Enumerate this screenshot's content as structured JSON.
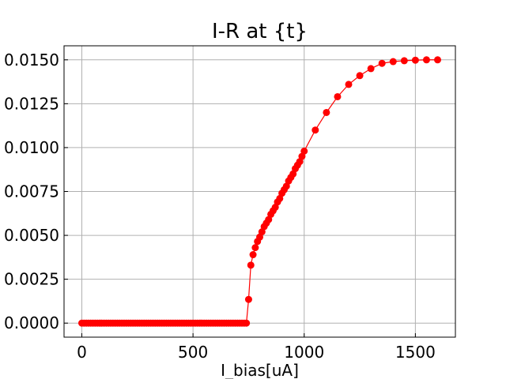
{
  "chart_data": {
    "type": "line",
    "title": "I-R at {t}",
    "xlabel": "I_bias[uA]",
    "ylabel": "",
    "xlim": [
      -80,
      1680
    ],
    "ylim": [
      -0.0008,
      0.0158
    ],
    "xticks": [
      0,
      500,
      1000,
      1500
    ],
    "xtick_labels": [
      "0",
      "500",
      "1000",
      "1500"
    ],
    "yticks": [
      0.0,
      0.0025,
      0.005,
      0.0075,
      0.01,
      0.0125,
      0.015
    ],
    "ytick_labels": [
      "0.0000",
      "0.0025",
      "0.0050",
      "0.0075",
      "0.0100",
      "0.0125",
      "0.0150"
    ],
    "grid": true,
    "colors": {
      "series": "#ff0000",
      "grid": "#b0b0b0",
      "axes": "#000000"
    },
    "series": [
      {
        "marker": "circle",
        "x": [
          0,
          10,
          20,
          30,
          40,
          50,
          60,
          70,
          80,
          90,
          100,
          110,
          120,
          130,
          140,
          150,
          160,
          170,
          180,
          190,
          200,
          210,
          220,
          230,
          240,
          250,
          260,
          270,
          280,
          290,
          300,
          310,
          320,
          330,
          340,
          350,
          360,
          370,
          380,
          390,
          400,
          410,
          420,
          430,
          440,
          450,
          460,
          470,
          480,
          490,
          500,
          510,
          520,
          530,
          540,
          550,
          560,
          570,
          580,
          590,
          600,
          610,
          620,
          630,
          640,
          650,
          660,
          670,
          680,
          690,
          700,
          710,
          720,
          730,
          740,
          750,
          760,
          770,
          780,
          790,
          800,
          810,
          820,
          830,
          840,
          850,
          860,
          870,
          880,
          890,
          900,
          910,
          920,
          930,
          940,
          950,
          960,
          970,
          980,
          990,
          1000,
          1050,
          1100,
          1150,
          1200,
          1250,
          1300,
          1350,
          1400,
          1450,
          1500,
          1550,
          1600
        ],
        "y": [
          0,
          0,
          0,
          0,
          0,
          0,
          0,
          0,
          0,
          0,
          0,
          0,
          0,
          0,
          0,
          0,
          0,
          0,
          0,
          0,
          0,
          0,
          0,
          0,
          0,
          0,
          0,
          0,
          0,
          0,
          0,
          0,
          0,
          0,
          0,
          0,
          0,
          0,
          0,
          0,
          0,
          0,
          0,
          0,
          0,
          0,
          0,
          0,
          0,
          0,
          0,
          0,
          0,
          0,
          0,
          0,
          0,
          0,
          0,
          0,
          0,
          0,
          0,
          0,
          0,
          0,
          0,
          0,
          0,
          0,
          0,
          0,
          0,
          0,
          0,
          0.00135,
          0.0033,
          0.0039,
          0.0043,
          0.00465,
          0.0049,
          0.0052,
          0.0055,
          0.0057,
          0.0059,
          0.0062,
          0.0064,
          0.0066,
          0.0069,
          0.0071,
          0.0074,
          0.0076,
          0.0078,
          0.0081,
          0.0083,
          0.0085,
          0.0088,
          0.009,
          0.0092,
          0.0095,
          0.0098,
          0.011,
          0.012,
          0.0129,
          0.0136,
          0.0141,
          0.0145,
          0.0148,
          0.0149,
          0.01495,
          0.01498,
          0.015,
          0.015
        ]
      }
    ]
  }
}
